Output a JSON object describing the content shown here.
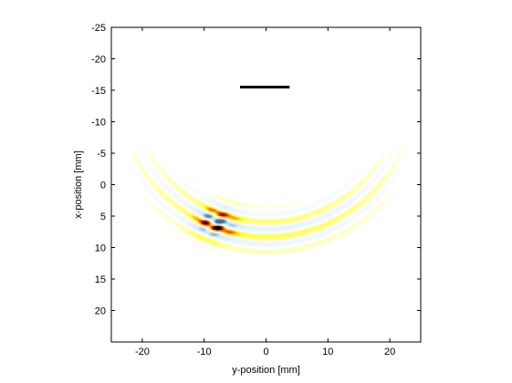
{
  "chart_data": {
    "type": "heatmap",
    "title": "",
    "xlabel": "y-position [mm]",
    "ylabel": "x-position [mm]",
    "xlim": [
      -25,
      25
    ],
    "ylim": [
      -25,
      25
    ],
    "y_axis_reversed": true,
    "grid": false,
    "xticks": [
      -20,
      -10,
      0,
      10,
      20
    ],
    "xtick_labels": [
      "-20",
      "-10",
      "0",
      "10",
      "20"
    ],
    "yticks": [
      -25,
      -20,
      -15,
      -10,
      -5,
      0,
      5,
      10,
      15,
      20
    ],
    "ytick_labels": [
      "-25",
      "-20",
      "-15",
      "-10",
      "-5",
      "0",
      "5",
      "10",
      "15",
      "20"
    ],
    "colormap": "hot-diverging (white background, yellow/red/black positive, light blue negative)",
    "field": {
      "description": "interference pattern of concentric arcs centred near (y=0, x=-16), radius ~24 mm, strongest near (y=-8, x=6)",
      "arc_center": [
        0,
        -16
      ],
      "arc_inner_radius": 17,
      "arc_outer_radius": 28,
      "peak_location": [
        -8.2,
        6.0
      ],
      "peak_value": 1.0
    },
    "annotations": [
      {
        "type": "line-segment",
        "from": [
          -4.2,
          -15.5
        ],
        "to": [
          3.8,
          -15.5
        ],
        "color": "#000000"
      }
    ]
  }
}
